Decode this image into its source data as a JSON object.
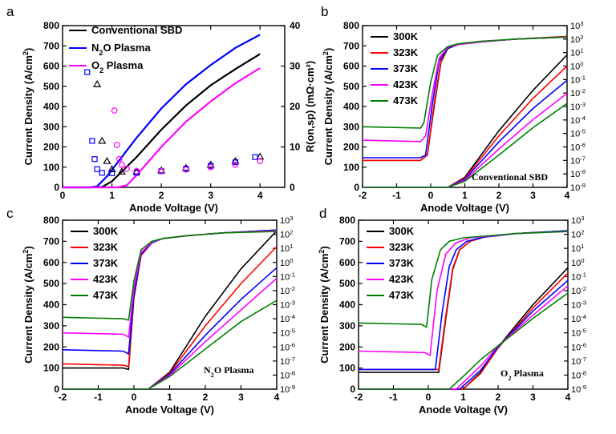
{
  "colors": {
    "black": "#000000",
    "red": "#ff0000",
    "blue": "#0000ff",
    "magenta": "#ff00ff",
    "green": "#008000"
  },
  "chart_data": [
    {
      "panel": "a",
      "type": "line",
      "xlabel": "Anode Voltage (V)",
      "ylabel": "Current Density (A/cm²)",
      "y2label": "R(on,sp) (mΩ·cm²)",
      "xlim": [
        0,
        4.5
      ],
      "ylim": [
        0,
        800
      ],
      "y2lim": [
        0,
        40
      ],
      "xticks": [
        0,
        1,
        2,
        3,
        4
      ],
      "yticks": [
        0,
        100,
        200,
        300,
        400,
        500,
        600,
        700,
        800
      ],
      "y2ticks": [
        0,
        10,
        20,
        30,
        40
      ],
      "legend": [
        "Conventional SBD",
        "N₂O Plasma",
        "O₂ Plasma"
      ],
      "legend_position": "top-left",
      "series": [
        {
          "name": "Conventional SBD",
          "color": "#000000",
          "axis": "left",
          "x": [
            0,
            0.6,
            0.8,
            1.0,
            1.5,
            2.0,
            2.5,
            3.0,
            3.5,
            4.0
          ],
          "y": [
            0,
            0,
            2,
            30,
            150,
            285,
            405,
            505,
            585,
            660
          ]
        },
        {
          "name": "N₂O Plasma",
          "color": "#0000ff",
          "axis": "left",
          "x": [
            0,
            0.55,
            0.7,
            0.9,
            1.5,
            2.0,
            2.5,
            3.0,
            3.5,
            4.0
          ],
          "y": [
            0,
            0,
            5,
            55,
            245,
            390,
            510,
            605,
            690,
            755
          ]
        },
        {
          "name": "O₂ Plasma",
          "color": "#ff00ff",
          "axis": "left",
          "x": [
            0,
            1.1,
            1.3,
            1.5,
            2.0,
            2.5,
            3.0,
            3.5,
            4.0
          ],
          "y": [
            0,
            0,
            10,
            60,
            200,
            325,
            425,
            515,
            590
          ]
        },
        {
          "name": "R(on,sp) Conventional",
          "color": "#000000",
          "axis": "right",
          "marker": "triangle",
          "x": [
            0.7,
            0.8,
            0.9,
            1.0,
            1.2,
            1.5,
            2.0,
            2.5,
            3.0,
            3.5,
            4.0
          ],
          "y": [
            25.5,
            11.5,
            6.5,
            4.5,
            3.9,
            3.9,
            4.2,
            4.8,
            5.6,
            6.5,
            7.6
          ]
        },
        {
          "name": "R(on,sp) N₂O",
          "color": "#0000ff",
          "axis": "right",
          "marker": "square",
          "x": [
            0.5,
            0.6,
            0.65,
            0.7,
            0.8,
            1.0,
            1.5,
            2.0,
            2.5,
            3.0,
            3.5,
            3.9
          ],
          "y": [
            28.5,
            11.5,
            7.0,
            4.5,
            3.6,
            3.5,
            3.6,
            4.0,
            4.6,
            5.3,
            6.2,
            7.5
          ]
        },
        {
          "name": "R(on,sp) O₂",
          "color": "#ff00ff",
          "axis": "right",
          "marker": "circle",
          "x": [
            1.05,
            1.1,
            1.15,
            1.2,
            1.3,
            1.5,
            2.0,
            2.5,
            3.0,
            3.5,
            4.0
          ],
          "y": [
            19.0,
            10.5,
            7.0,
            5.6,
            4.6,
            4.0,
            4.0,
            4.4,
            5.0,
            5.6,
            6.5
          ]
        }
      ]
    },
    {
      "panel": "b",
      "type": "line",
      "annotation": "Conventional SBD",
      "xlabel": "Anode Voltage (V)",
      "ylabel": "Current Density (A/cm²)",
      "xlim": [
        -2,
        4
      ],
      "ylim": [
        0,
        800
      ],
      "y2lim_log10": [
        -9,
        3
      ],
      "y2_scale": "log",
      "xticks": [
        -2,
        -1,
        0,
        1,
        2,
        3,
        4
      ],
      "yticks": [
        0,
        100,
        200,
        300,
        400,
        500,
        600,
        700,
        800
      ],
      "legend": [
        "300K",
        "323K",
        "373K",
        "423K",
        "473K"
      ],
      "legend_position": "top-left",
      "series": [
        {
          "name": "300K",
          "color": "#000000",
          "linear_x": [
            -2,
            0.5,
            1.0,
            2.0,
            3.0,
            4.0
          ],
          "linear_y": [
            0,
            0,
            50,
            280,
            480,
            655
          ],
          "log_x": [
            -2,
            -0.3,
            -0.1,
            0.1,
            0.3,
            0.5,
            0.8,
            1.5,
            2.5,
            4.0
          ],
          "log_y": [
            -7.0,
            -7.0,
            -6.6,
            -3.0,
            0.3,
            1.3,
            1.6,
            1.8,
            2.0,
            2.2
          ]
        },
        {
          "name": "323K",
          "color": "#ff0000",
          "linear_x": [
            -2,
            0.5,
            1.0,
            2.0,
            3.0,
            4.0
          ],
          "linear_y": [
            0,
            0,
            45,
            255,
            440,
            600
          ],
          "log_x": [
            -2,
            -0.3,
            -0.1,
            0.1,
            0.3,
            0.5,
            0.8,
            1.5,
            2.5,
            4.0
          ],
          "log_y": [
            -7.0,
            -7.0,
            -6.6,
            -2.8,
            0.4,
            1.35,
            1.6,
            1.8,
            2.0,
            2.2
          ]
        },
        {
          "name": "373K",
          "color": "#0000ff",
          "linear_x": [
            -2,
            0.5,
            1.0,
            2.0,
            3.0,
            4.0
          ],
          "linear_y": [
            0,
            0,
            40,
            225,
            390,
            530
          ],
          "log_x": [
            -2,
            -0.3,
            -0.15,
            0.05,
            0.25,
            0.5,
            0.8,
            1.5,
            2.5,
            4.0
          ],
          "log_y": [
            -6.8,
            -6.8,
            -6.6,
            -2.8,
            0.4,
            1.35,
            1.6,
            1.8,
            2.0,
            2.15
          ]
        },
        {
          "name": "423K",
          "color": "#ff00ff",
          "linear_x": [
            -2,
            0.5,
            1.0,
            2.0,
            3.0,
            4.0
          ],
          "linear_y": [
            0,
            0,
            35,
            190,
            335,
            465
          ],
          "log_x": [
            -2,
            -0.3,
            -0.15,
            0.05,
            0.25,
            0.5,
            0.8,
            1.5,
            2.5,
            4.0
          ],
          "log_y": [
            -5.5,
            -5.6,
            -5.2,
            -2.0,
            0.6,
            1.4,
            1.6,
            1.8,
            2.0,
            2.15
          ]
        },
        {
          "name": "473K",
          "color": "#008000",
          "linear_x": [
            -2,
            0.5,
            1.0,
            2.0,
            3.0,
            4.0
          ],
          "linear_y": [
            0,
            0,
            30,
            160,
            295,
            415
          ],
          "log_x": [
            -2,
            -0.3,
            -0.2,
            0.0,
            0.2,
            0.5,
            0.8,
            1.5,
            2.5,
            4.0
          ],
          "log_y": [
            -4.5,
            -4.6,
            -4.2,
            -1.2,
            0.8,
            1.45,
            1.65,
            1.85,
            2.0,
            2.15
          ]
        }
      ]
    },
    {
      "panel": "c",
      "type": "line",
      "annotation": "N₂O Plasma",
      "xlabel": "Anode Voltage (V)",
      "ylabel": "Current Density (A/cm²)",
      "xlim": [
        -2,
        4
      ],
      "ylim": [
        0,
        800
      ],
      "y2lim_log10": [
        -9,
        3
      ],
      "y2_scale": "log",
      "xticks": [
        -2,
        -1,
        0,
        1,
        2,
        3,
        4
      ],
      "yticks": [
        0,
        100,
        200,
        300,
        400,
        500,
        600,
        700,
        800
      ],
      "legend": [
        "300K",
        "323K",
        "373K",
        "423K",
        "473K"
      ],
      "legend_position": "top-left",
      "series": [
        {
          "name": "300K",
          "color": "#000000",
          "linear_x": [
            -2,
            0.4,
            1.0,
            2.0,
            3.0,
            4.0
          ],
          "linear_y": [
            0,
            0,
            80,
            345,
            570,
            750
          ],
          "log_x": [
            -2,
            -0.3,
            -0.15,
            0.0,
            0.2,
            0.5,
            0.8,
            1.5,
            2.5,
            4.0
          ],
          "log_y": [
            -7.5,
            -7.5,
            -7.6,
            -2.5,
            0.5,
            1.4,
            1.7,
            1.9,
            2.1,
            2.3
          ]
        },
        {
          "name": "323K",
          "color": "#ff0000",
          "linear_x": [
            -2,
            0.4,
            1.0,
            2.0,
            3.0,
            4.0
          ],
          "linear_y": [
            0,
            0,
            75,
            300,
            500,
            675
          ],
          "log_x": [
            -2,
            -0.3,
            -0.15,
            0.0,
            0.2,
            0.5,
            0.8,
            1.5,
            2.5,
            4.0
          ],
          "log_y": [
            -7.2,
            -7.3,
            -7.4,
            -2.3,
            0.5,
            1.4,
            1.7,
            1.9,
            2.1,
            2.3
          ]
        },
        {
          "name": "373K",
          "color": "#0000ff",
          "linear_x": [
            -2,
            0.4,
            1.0,
            2.0,
            3.0,
            4.0
          ],
          "linear_y": [
            0,
            0,
            70,
            255,
            425,
            575
          ],
          "log_x": [
            -2,
            -0.3,
            -0.15,
            0.0,
            0.2,
            0.5,
            0.8,
            1.5,
            2.5,
            4.0
          ],
          "log_y": [
            -6.2,
            -6.3,
            -6.5,
            -2.2,
            0.6,
            1.4,
            1.7,
            1.9,
            2.1,
            2.3
          ]
        },
        {
          "name": "423K",
          "color": "#ff00ff",
          "linear_x": [
            -2,
            0.4,
            1.0,
            2.0,
            3.0,
            4.0
          ],
          "linear_y": [
            0,
            0,
            65,
            225,
            375,
            525
          ],
          "log_x": [
            -2,
            -0.3,
            -0.15,
            0.0,
            0.2,
            0.5,
            0.8,
            1.5,
            2.5,
            4.0
          ],
          "log_y": [
            -5.0,
            -5.1,
            -5.3,
            -1.8,
            0.7,
            1.45,
            1.7,
            1.9,
            2.1,
            2.25
          ]
        },
        {
          "name": "473K",
          "color": "#008000",
          "linear_x": [
            -2,
            0.4,
            1.0,
            2.0,
            3.0,
            4.0
          ],
          "linear_y": [
            0,
            0,
            60,
            190,
            320,
            420
          ],
          "log_x": [
            -2,
            -0.3,
            -0.15,
            0.0,
            0.2,
            0.5,
            0.8,
            1.5,
            2.5,
            4.0
          ],
          "log_y": [
            -3.9,
            -4.0,
            -4.1,
            -1.3,
            0.9,
            1.5,
            1.7,
            1.9,
            2.1,
            2.2
          ]
        }
      ]
    },
    {
      "panel": "d",
      "type": "line",
      "annotation": "O₂ Plasma",
      "xlabel": "Anode Voltage (V)",
      "ylabel": "Current Density (A/cm²)",
      "xlim": [
        -2,
        4
      ],
      "ylim": [
        0,
        800
      ],
      "y2lim_log10": [
        -9,
        3
      ],
      "y2_scale": "log",
      "xticks": [
        -2,
        -1,
        0,
        1,
        2,
        3,
        4
      ],
      "yticks": [
        0,
        100,
        200,
        300,
        400,
        500,
        600,
        700,
        800
      ],
      "legend": [
        "300K",
        "323K",
        "373K",
        "423K",
        "473K"
      ],
      "legend_position": "top-left",
      "series": [
        {
          "name": "300K",
          "color": "#000000",
          "linear_x": [
            -2,
            1.0,
            1.5,
            2.0,
            3.0,
            4.0
          ],
          "linear_y": [
            0,
            0,
            80,
            200,
            400,
            575
          ],
          "log_x": [
            -2,
            0.3,
            0.5,
            0.7,
            0.9,
            1.2,
            1.6,
            2.5,
            4.0
          ],
          "log_y": [
            -7.8,
            -7.8,
            -4.0,
            -0.5,
            0.9,
            1.5,
            1.8,
            2.05,
            2.25
          ]
        },
        {
          "name": "323K",
          "color": "#ff0000",
          "linear_x": [
            -2,
            1.0,
            1.5,
            2.0,
            3.0,
            4.0
          ],
          "linear_y": [
            0,
            0,
            75,
            195,
            385,
            550
          ],
          "log_x": [
            -2,
            0.3,
            0.5,
            0.7,
            0.9,
            1.2,
            1.6,
            2.5,
            4.0
          ],
          "log_y": [
            -7.6,
            -7.6,
            -3.8,
            -0.4,
            0.9,
            1.5,
            1.8,
            2.05,
            2.25
          ]
        },
        {
          "name": "373K",
          "color": "#0000ff",
          "linear_x": [
            -2,
            0.9,
            1.5,
            2.0,
            3.0,
            4.0
          ],
          "linear_y": [
            0,
            0,
            90,
            200,
            370,
            515
          ],
          "log_x": [
            -2,
            0.2,
            0.4,
            0.6,
            0.8,
            1.1,
            1.6,
            2.5,
            4.0
          ],
          "log_y": [
            -7.6,
            -7.6,
            -3.5,
            -0.3,
            0.9,
            1.5,
            1.8,
            2.05,
            2.25
          ]
        },
        {
          "name": "423K",
          "color": "#ff00ff",
          "linear_x": [
            -2,
            0.8,
            1.5,
            2.0,
            3.0,
            4.0
          ],
          "linear_y": [
            0,
            0,
            110,
            205,
            350,
            490
          ],
          "log_x": [
            -2,
            -0.1,
            0.05,
            0.25,
            0.5,
            0.8,
            1.2,
            2.5,
            4.0
          ],
          "log_y": [
            -6.3,
            -6.4,
            -6.6,
            -2.0,
            0.6,
            1.4,
            1.75,
            2.05,
            2.2
          ]
        },
        {
          "name": "473K",
          "color": "#008000",
          "linear_x": [
            -2,
            0.6,
            1.0,
            1.5,
            2.0,
            3.0,
            4.0
          ],
          "linear_y": [
            0,
            0,
            60,
            140,
            205,
            335,
            455
          ],
          "log_x": [
            -2,
            -0.2,
            -0.05,
            0.1,
            0.35,
            0.6,
            1.0,
            2.5,
            4.0
          ],
          "log_y": [
            -4.3,
            -4.4,
            -4.6,
            -1.2,
            0.9,
            1.5,
            1.75,
            2.05,
            2.2
          ]
        }
      ]
    }
  ],
  "panels": {
    "a": {
      "label": "a"
    },
    "b": {
      "label": "b"
    },
    "c": {
      "label": "c"
    },
    "d": {
      "label": "d"
    }
  }
}
